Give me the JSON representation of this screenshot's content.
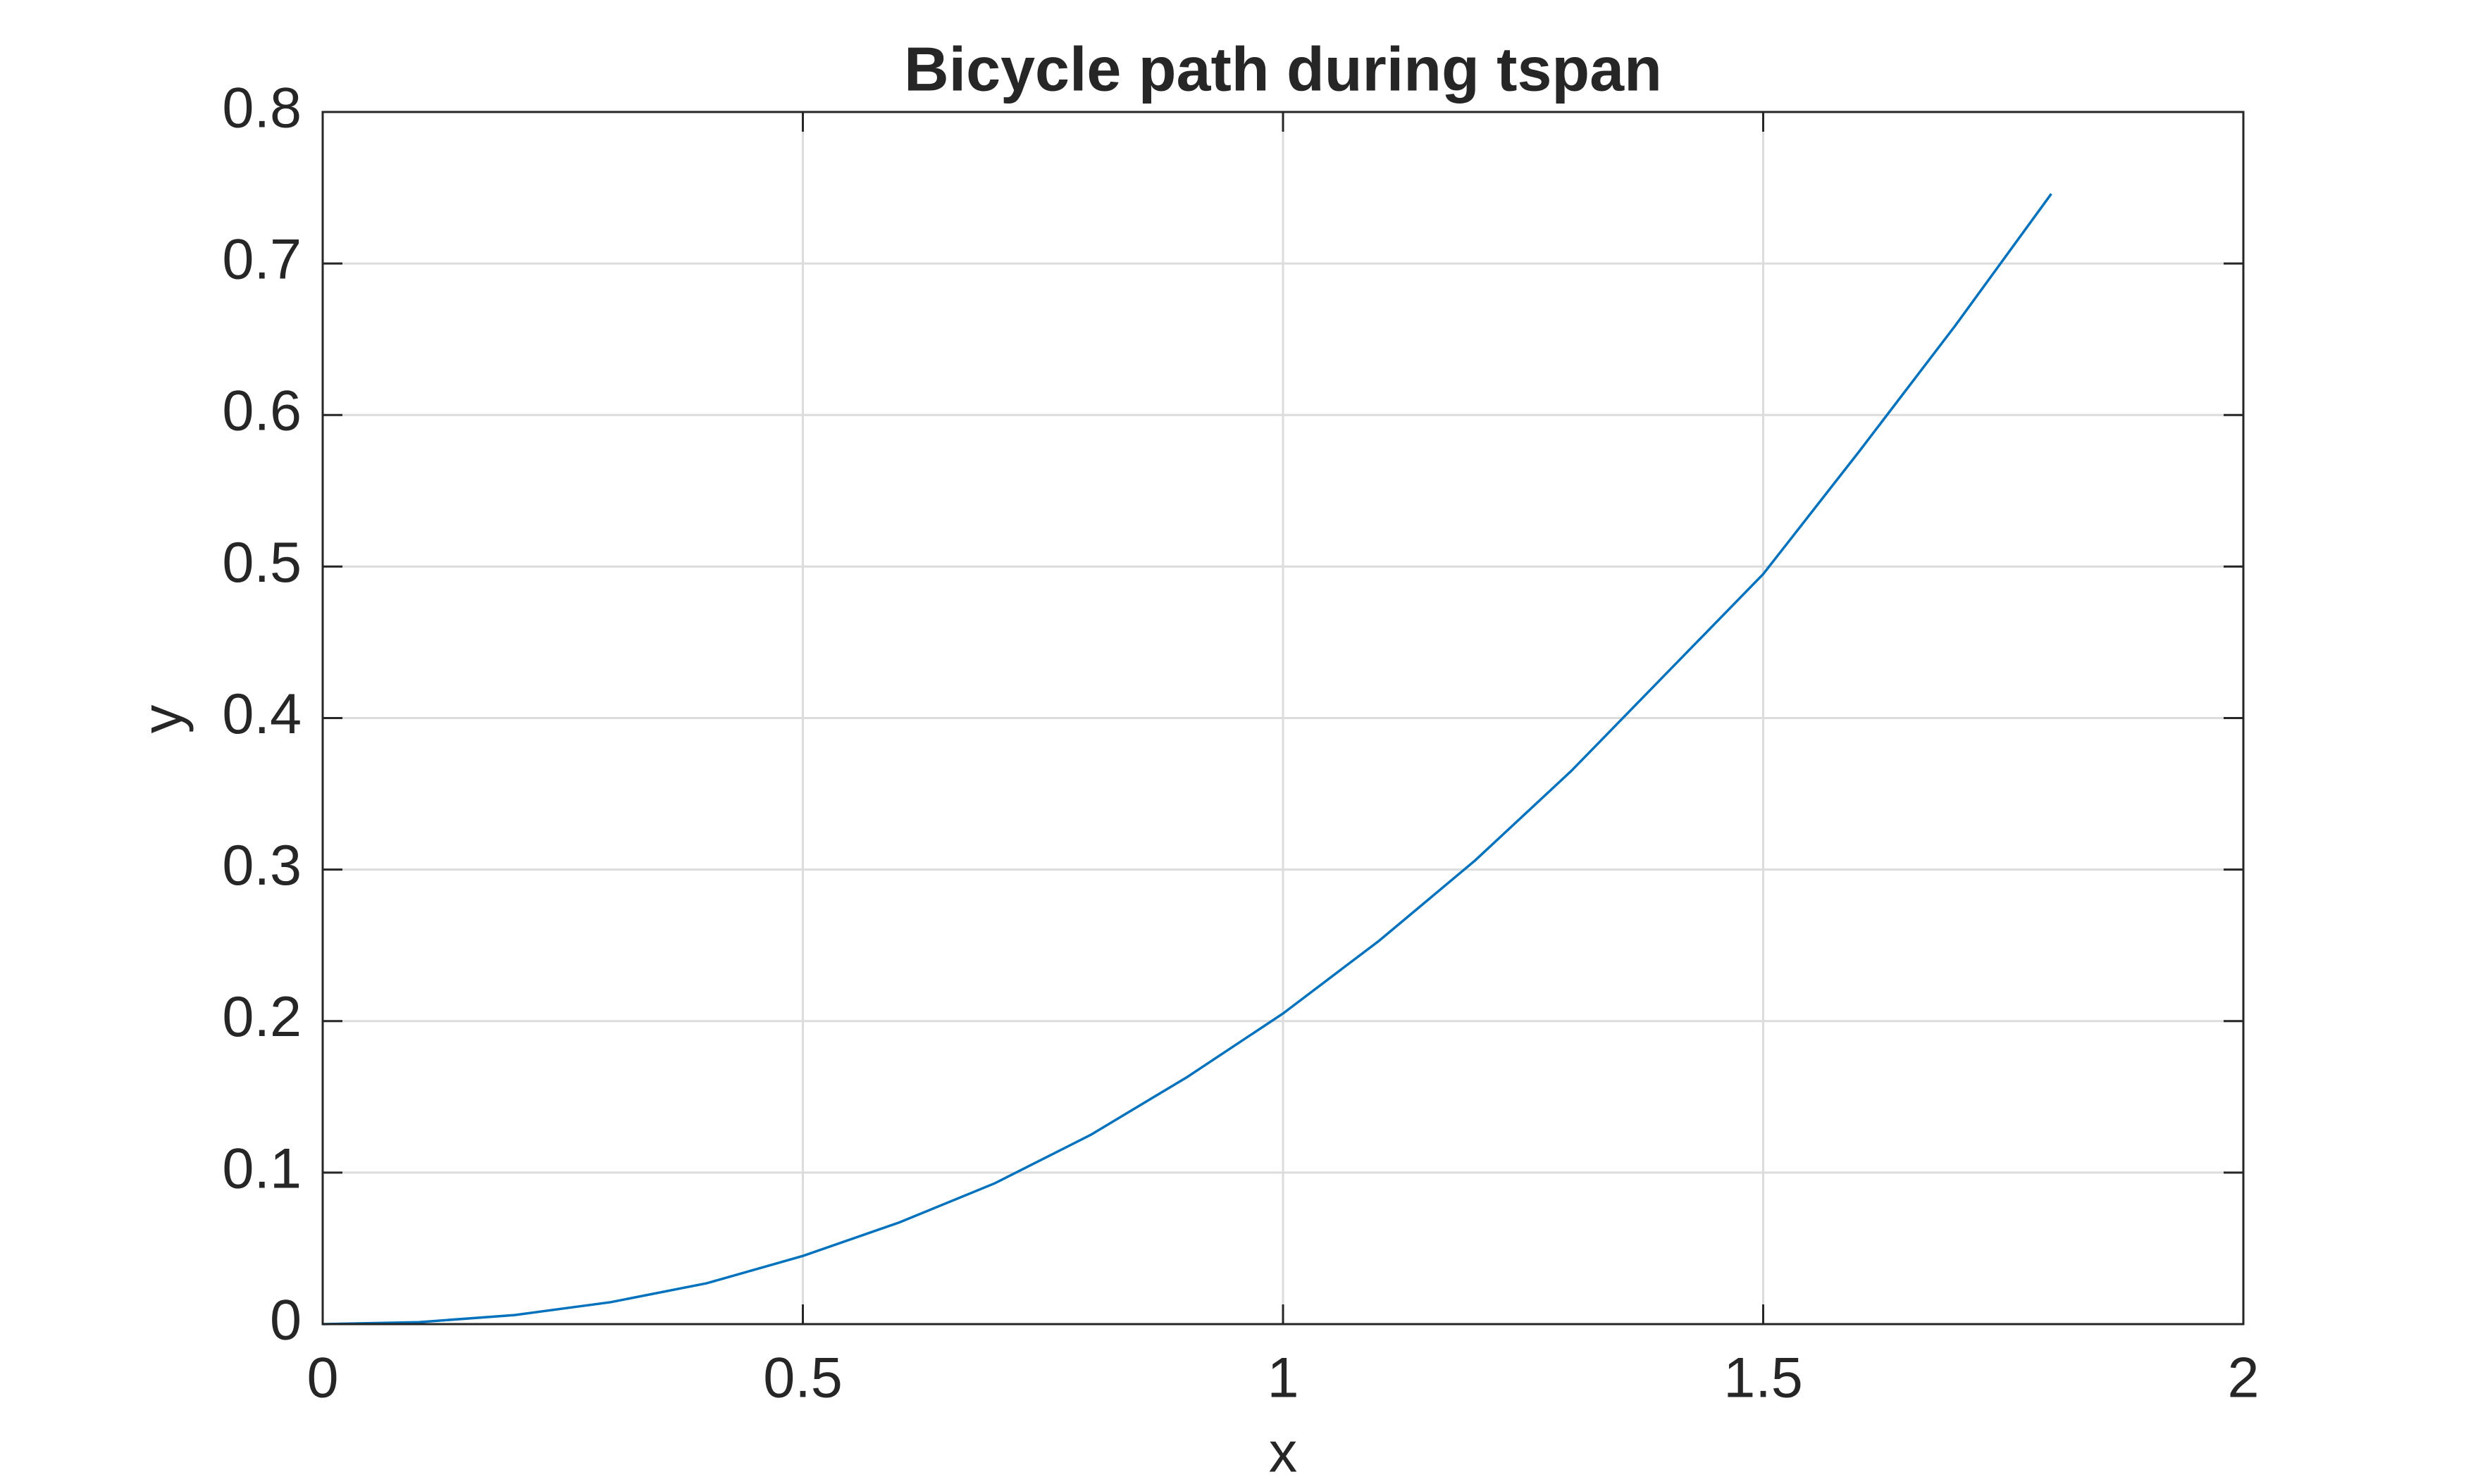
{
  "chart_data": {
    "type": "line",
    "title": "Bicycle path during tspan",
    "xlabel": "x",
    "ylabel": "y",
    "x": [
      0,
      0.1,
      0.2,
      0.3,
      0.4,
      0.5,
      0.6,
      0.7,
      0.8,
      0.9,
      1.0,
      1.1,
      1.2,
      1.3,
      1.4,
      1.5,
      1.6,
      1.7,
      1.8
    ],
    "series": [
      {
        "color": "#0072bd",
        "values": [
          0,
          0.0013,
          0.006,
          0.0145,
          0.027,
          0.045,
          0.067,
          0.093,
          0.125,
          0.163,
          0.205,
          0.253,
          0.306,
          0.365,
          0.43,
          0.495,
          0.576,
          0.659,
          0.746
        ]
      }
    ],
    "xlim": [
      0,
      2
    ],
    "ylim": [
      0,
      0.8
    ],
    "xticks": [
      0,
      0.5,
      1,
      1.5,
      2
    ],
    "yticks": [
      0,
      0.1,
      0.2,
      0.3,
      0.4,
      0.5,
      0.6,
      0.7,
      0.8
    ],
    "grid": true
  }
}
